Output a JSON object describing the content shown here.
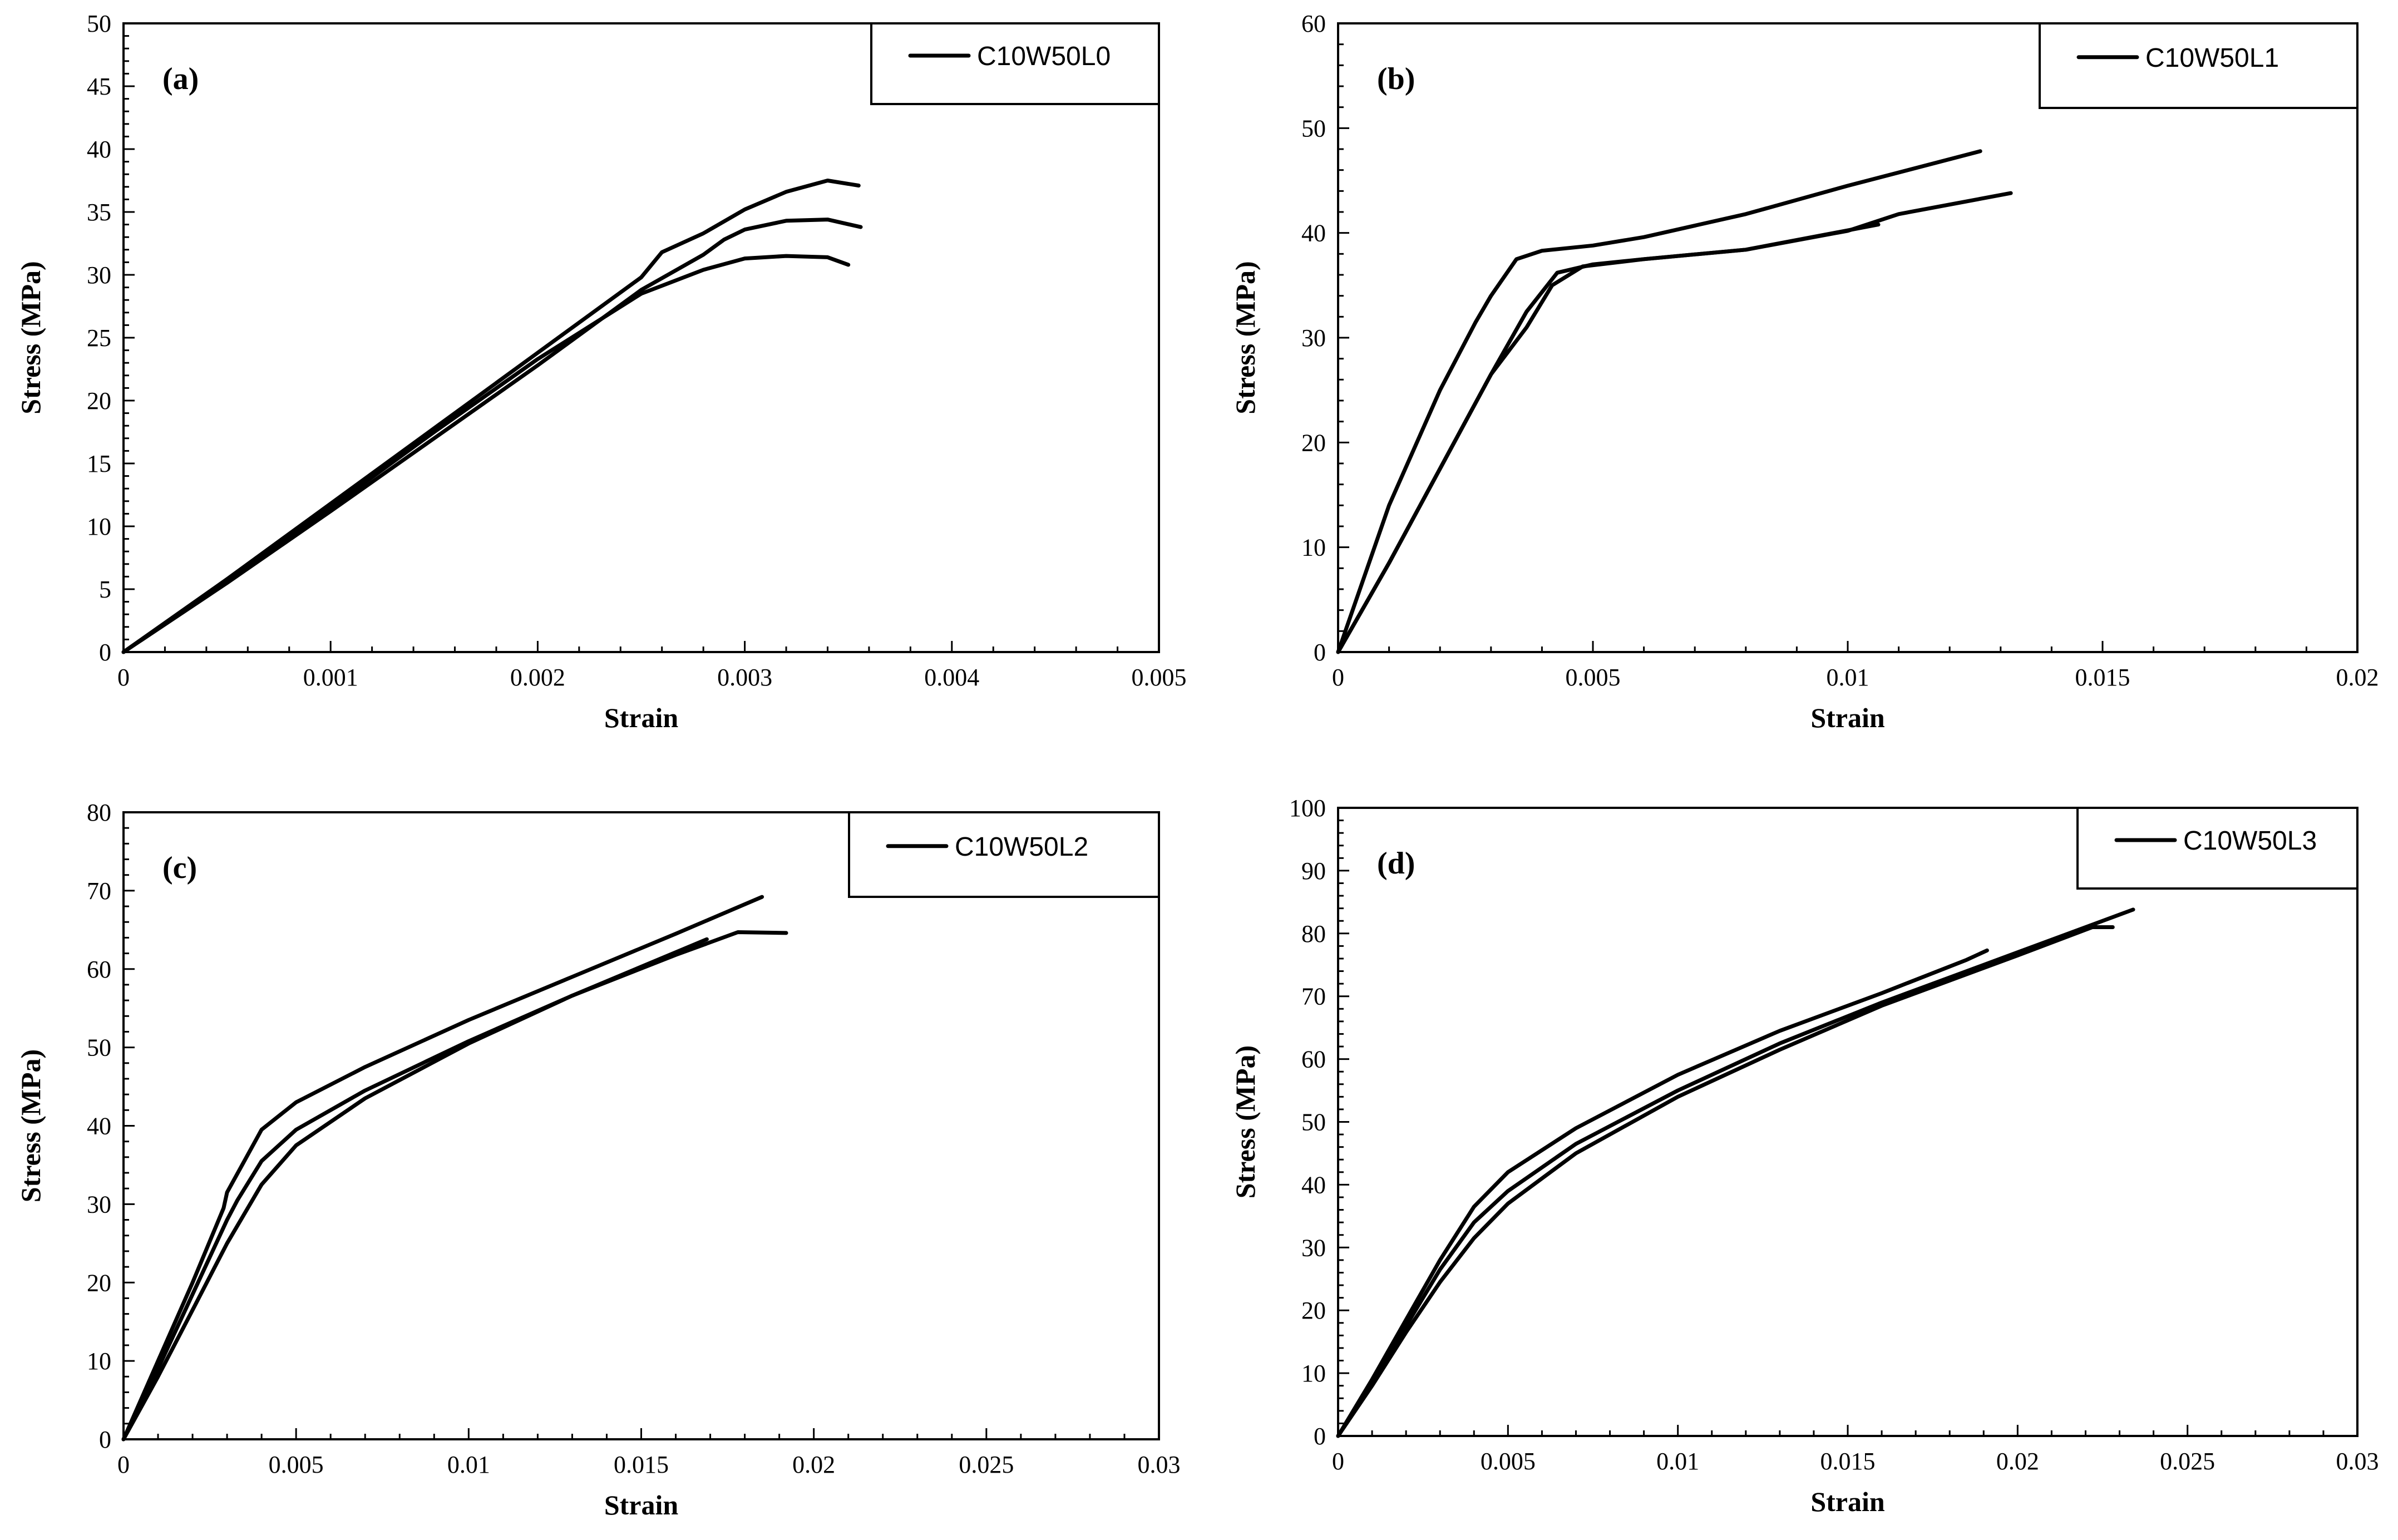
{
  "chart_data": [
    {
      "type": "line",
      "panel_label": "(a)",
      "xlabel": "Strain",
      "ylabel": "Stress (MPa)",
      "xlim": [
        0,
        0.005
      ],
      "ylim": [
        0,
        50
      ],
      "x_ticks": [
        0,
        0.001,
        0.002,
        0.003,
        0.004,
        0.005
      ],
      "x_tick_labels": [
        "0",
        "0.001",
        "0.002",
        "0.003",
        "0.004",
        "0.005"
      ],
      "y_ticks": [
        0,
        5,
        10,
        15,
        20,
        25,
        30,
        35,
        40,
        45,
        50
      ],
      "y_tick_labels": [
        "0",
        "5",
        "10",
        "15",
        "20",
        "25",
        "30",
        "35",
        "40",
        "45",
        "50"
      ],
      "legend": [
        "C10W50L0"
      ],
      "legend_position": "top-right",
      "series": [
        {
          "name": "C10W50L0",
          "x": [
            0,
            0.0005,
            0.001,
            0.0015,
            0.002,
            0.0025,
            0.0026,
            0.0028,
            0.003,
            0.0032,
            0.0034,
            0.00355
          ],
          "y": [
            0,
            5.8,
            11.8,
            17.8,
            23.8,
            29.8,
            31.8,
            33.3,
            35.2,
            36.6,
            37.5,
            37.1
          ]
        },
        {
          "name": "C10W50L0",
          "x": [
            0,
            0.0005,
            0.001,
            0.0015,
            0.002,
            0.0025,
            0.0028,
            0.0029,
            0.003,
            0.0032,
            0.0034,
            0.00356
          ],
          "y": [
            0,
            5.5,
            11.2,
            17.0,
            22.8,
            28.8,
            31.6,
            32.8,
            33.6,
            34.3,
            34.4,
            33.8
          ]
        },
        {
          "name": "C10W50L0",
          "x": [
            0,
            0.0005,
            0.001,
            0.0015,
            0.002,
            0.0025,
            0.0028,
            0.003,
            0.0032,
            0.0034,
            0.0035
          ],
          "y": [
            0,
            5.7,
            11.5,
            17.5,
            23.3,
            28.5,
            30.4,
            31.3,
            31.5,
            31.4,
            30.8
          ]
        }
      ]
    },
    {
      "type": "line",
      "panel_label": "(b)",
      "xlabel": "Strain",
      "ylabel": "Stress (MPa)",
      "xlim": [
        0,
        0.02
      ],
      "ylim": [
        0,
        60
      ],
      "x_ticks": [
        0,
        0.005,
        0.01,
        0.015,
        0.02
      ],
      "x_tick_labels": [
        "0",
        "0.005",
        "0.01",
        "0.015",
        "0.02"
      ],
      "y_ticks": [
        0,
        10,
        20,
        30,
        40,
        50,
        60
      ],
      "y_tick_labels": [
        "0",
        "10",
        "20",
        "30",
        "40",
        "50",
        "60"
      ],
      "legend": [
        "C10W50L1"
      ],
      "legend_position": "top-right",
      "series": [
        {
          "name": "C10W50L1",
          "x": [
            0,
            0.001,
            0.002,
            0.0027,
            0.003,
            0.0035,
            0.004,
            0.005,
            0.006,
            0.008,
            0.01,
            0.0126
          ],
          "y": [
            0,
            14,
            25,
            31.5,
            34,
            37.5,
            38.3,
            38.8,
            39.6,
            41.8,
            44.5,
            47.8
          ]
        },
        {
          "name": "C10W50L1",
          "x": [
            0,
            0.001,
            0.002,
            0.003,
            0.0037,
            0.0042,
            0.0048,
            0.006,
            0.008,
            0.01,
            0.011,
            0.0132
          ],
          "y": [
            0,
            8.5,
            17.5,
            26.5,
            31,
            35,
            36.8,
            37.5,
            38.4,
            40.2,
            41.8,
            43.8
          ]
        },
        {
          "name": "C10W50L1",
          "x": [
            0,
            0.001,
            0.002,
            0.003,
            0.0037,
            0.0043,
            0.005,
            0.006,
            0.008,
            0.0106
          ],
          "y": [
            0,
            8.5,
            17.5,
            26.5,
            32.5,
            36.2,
            37,
            37.5,
            38.4,
            40.8
          ]
        }
      ]
    },
    {
      "type": "line",
      "panel_label": "(c)",
      "xlabel": "Strain",
      "ylabel": "Stress (MPa)",
      "xlim": [
        0,
        0.03
      ],
      "ylim": [
        0,
        80
      ],
      "x_ticks": [
        0,
        0.005,
        0.01,
        0.015,
        0.02,
        0.025,
        0.03
      ],
      "x_tick_labels": [
        "0",
        "0.005",
        "0.01",
        "0.015",
        "0.02",
        "0.025",
        "0.03"
      ],
      "y_ticks": [
        0,
        10,
        20,
        30,
        40,
        50,
        60,
        70,
        80
      ],
      "y_tick_labels": [
        "0",
        "10",
        "20",
        "30",
        "40",
        "50",
        "60",
        "70",
        "80"
      ],
      "legend": [
        "C10W50L2"
      ],
      "legend_position": "top-right",
      "series": [
        {
          "name": "C10W50L2",
          "x": [
            0,
            0.001,
            0.002,
            0.0029,
            0.003,
            0.0035,
            0.004,
            0.005,
            0.007,
            0.01,
            0.013,
            0.016,
            0.0185
          ],
          "y": [
            0,
            10,
            20,
            29.5,
            31.5,
            35.5,
            39.5,
            43,
            47.5,
            53.5,
            59,
            64.5,
            69.2
          ]
        },
        {
          "name": "C10W50L2",
          "x": [
            0,
            0.001,
            0.002,
            0.003,
            0.0033,
            0.004,
            0.005,
            0.007,
            0.01,
            0.013,
            0.016,
            0.0178,
            0.0192
          ],
          "y": [
            0,
            9,
            18.5,
            28,
            30.5,
            35.5,
            39.5,
            44.5,
            50.8,
            56.6,
            61.8,
            64.7,
            64.6
          ]
        },
        {
          "name": "C10W50L2",
          "x": [
            0,
            0.001,
            0.002,
            0.003,
            0.004,
            0.005,
            0.007,
            0.01,
            0.013,
            0.0169
          ],
          "y": [
            0,
            8,
            16.5,
            25,
            32.5,
            37.5,
            43.5,
            50.5,
            56.6,
            63.8
          ]
        }
      ]
    },
    {
      "type": "line",
      "panel_label": "(d)",
      "xlabel": "Strain",
      "ylabel": "Stress (MPa)",
      "xlim": [
        0,
        0.03
      ],
      "ylim": [
        0,
        100
      ],
      "x_ticks": [
        0,
        0.005,
        0.01,
        0.015,
        0.02,
        0.025,
        0.03
      ],
      "x_tick_labels": [
        "0",
        "0.005",
        "0.01",
        "0.015",
        "0.02",
        "0.025",
        "0.03"
      ],
      "y_ticks": [
        0,
        10,
        20,
        30,
        40,
        50,
        60,
        70,
        80,
        90,
        100
      ],
      "y_tick_labels": [
        "0",
        "10",
        "20",
        "30",
        "40",
        "50",
        "60",
        "70",
        "80",
        "90",
        "100"
      ],
      "legend": [
        "C10W50L3"
      ],
      "legend_position": "top-right",
      "series": [
        {
          "name": "C10W50L3",
          "x": [
            0,
            0.001,
            0.002,
            0.003,
            0.004,
            0.005,
            0.007,
            0.01,
            0.013,
            0.016,
            0.0185,
            0.0191
          ],
          "y": [
            0,
            9,
            18.5,
            28,
            36.5,
            42,
            49,
            57.5,
            64.5,
            70.5,
            75.8,
            77.3
          ]
        },
        {
          "name": "C10W50L3",
          "x": [
            0,
            0.001,
            0.002,
            0.003,
            0.004,
            0.005,
            0.007,
            0.01,
            0.013,
            0.016,
            0.02,
            0.0234
          ],
          "y": [
            0,
            8.5,
            17.5,
            26.5,
            34,
            39,
            46.5,
            55,
            62.5,
            69,
            77,
            83.8
          ]
        },
        {
          "name": "C10W50L3",
          "x": [
            0,
            0.001,
            0.002,
            0.003,
            0.004,
            0.005,
            0.007,
            0.01,
            0.013,
            0.016,
            0.02,
            0.0222,
            0.0228
          ],
          "y": [
            0,
            8,
            16.5,
            24.5,
            31.5,
            37,
            45,
            54,
            61.5,
            68.5,
            76.5,
            81,
            81
          ]
        }
      ]
    }
  ]
}
